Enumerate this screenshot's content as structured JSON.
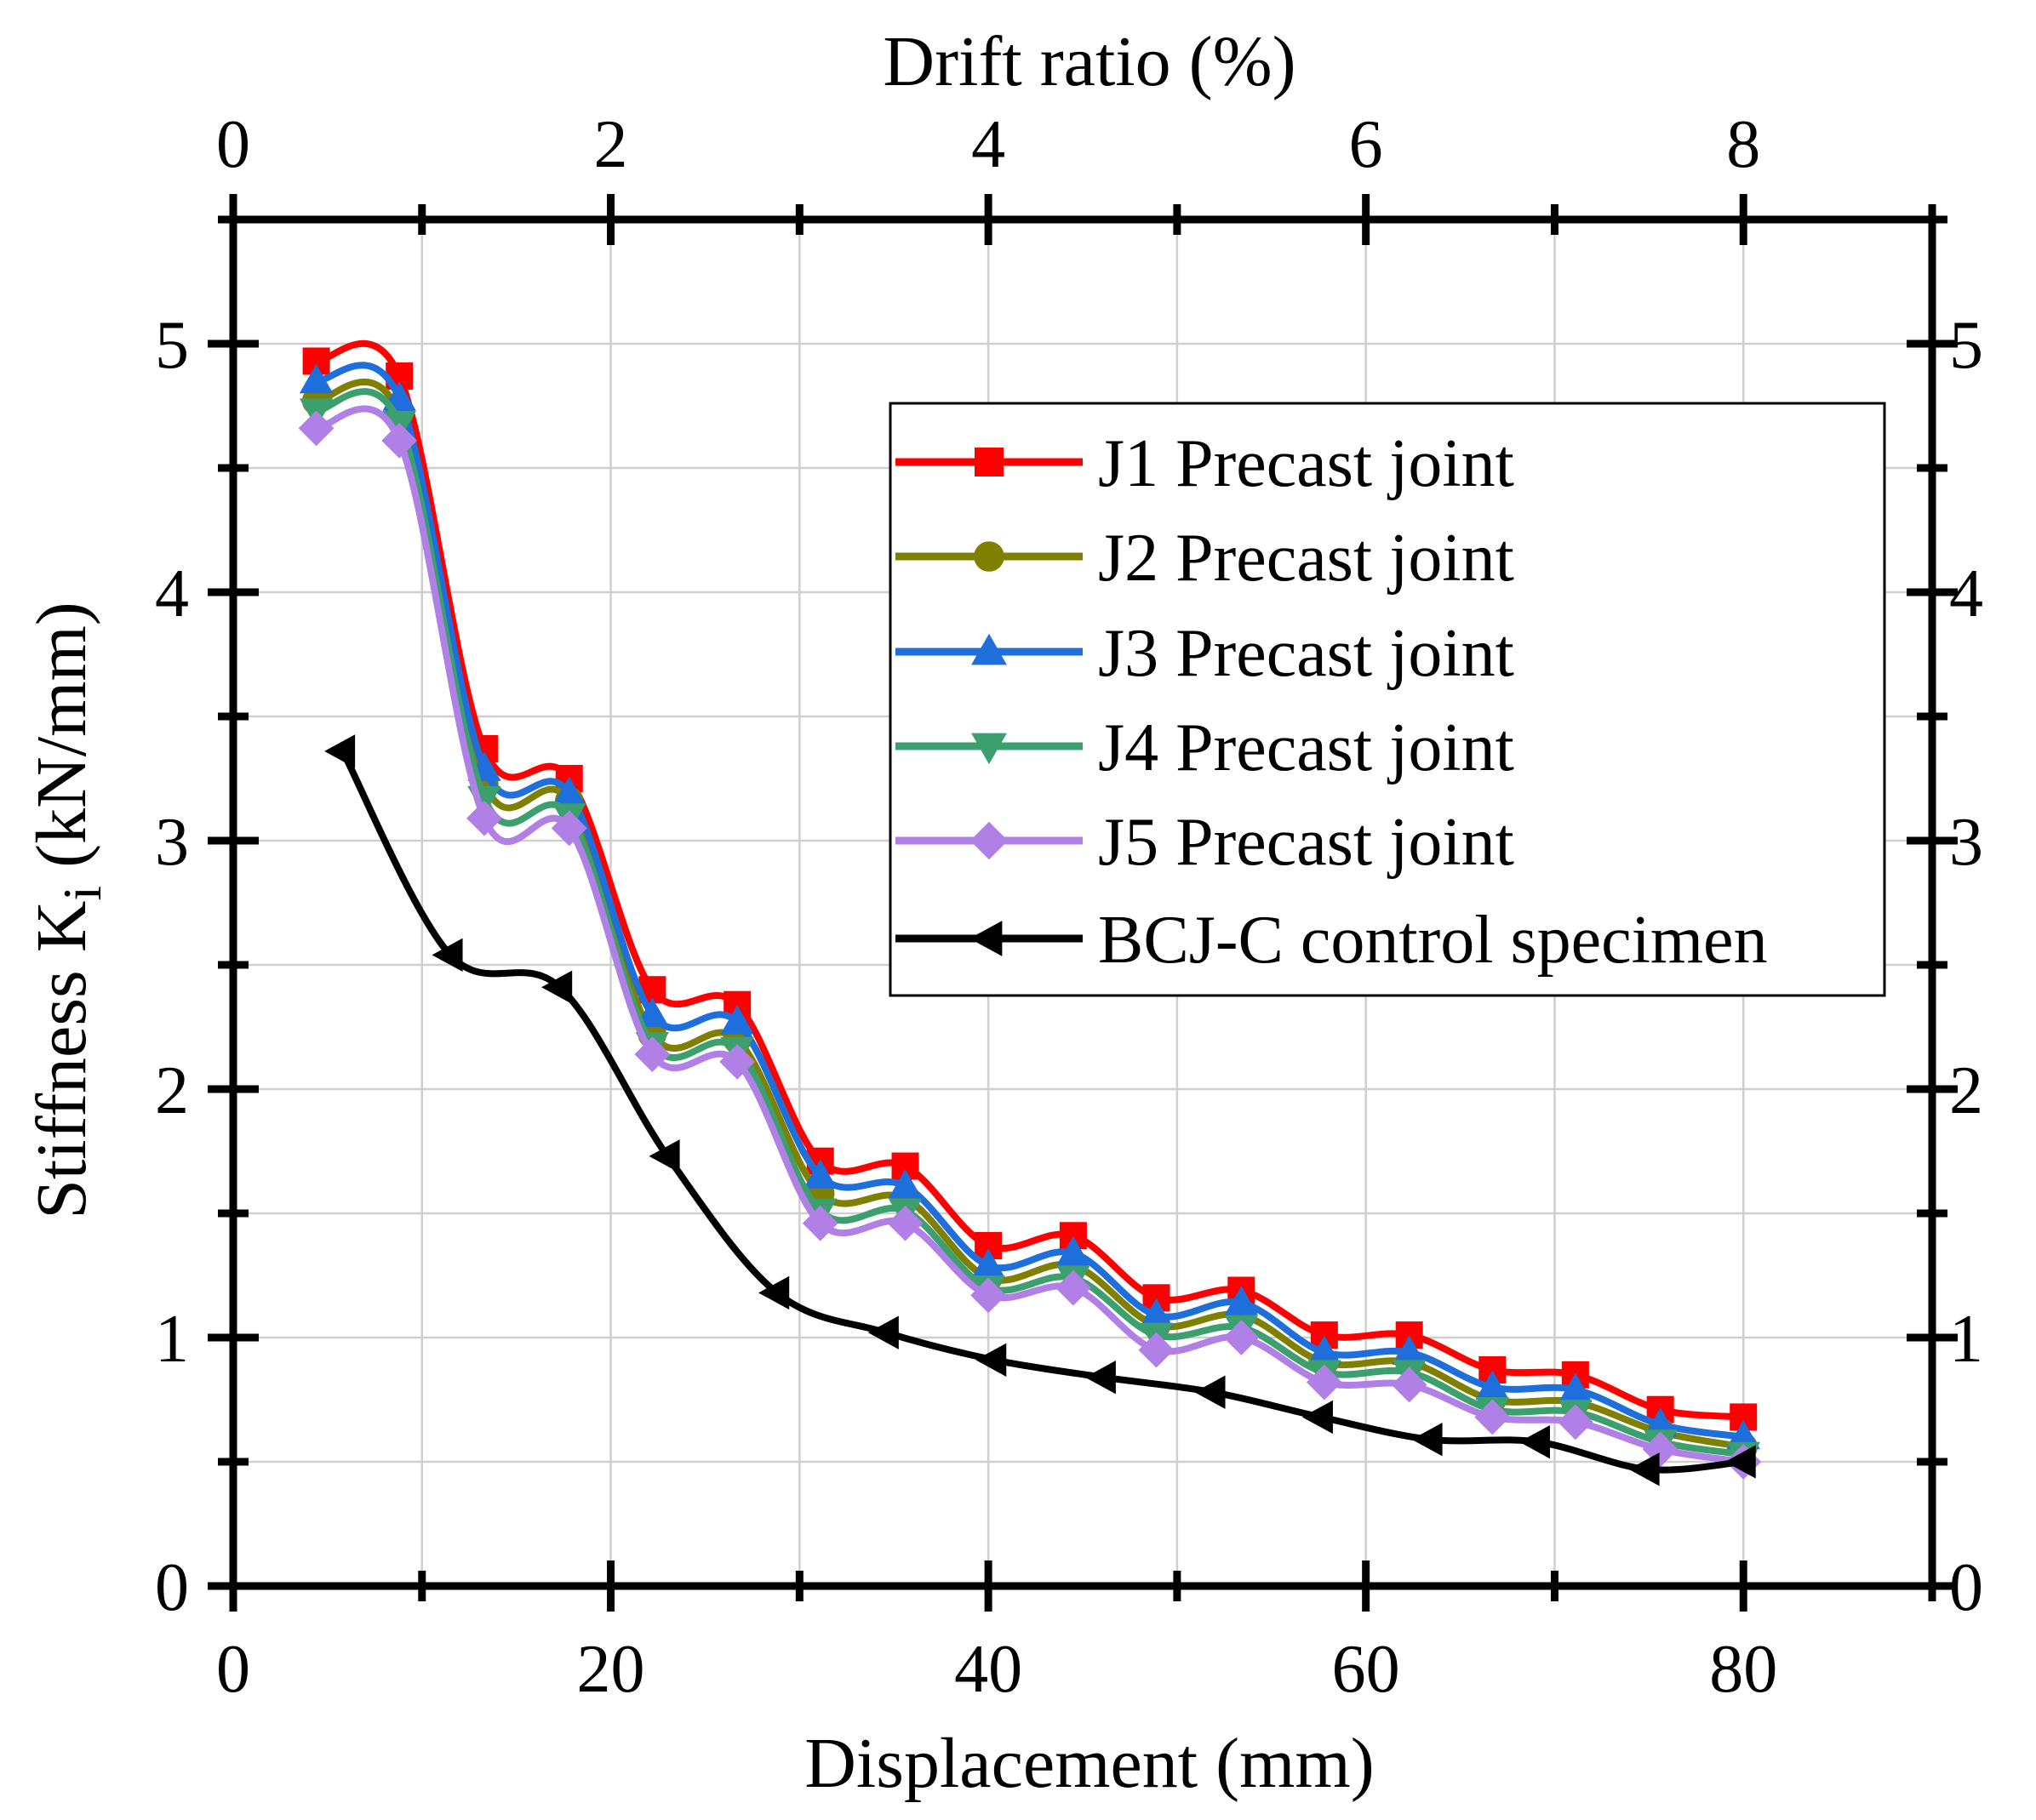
{
  "chart_data": {
    "type": "line",
    "title": "",
    "xlabel": "Displacement (mm)",
    "x2label": "Drift ratio (%)",
    "ylabel": "Stiffness K",
    "ylabel_sub": "i",
    "ylabel_unit": " (kN/mm)",
    "xlim": [
      0,
      90
    ],
    "ylim": [
      0,
      5.5
    ],
    "x2lim": [
      0,
      9
    ],
    "xticks": [
      0,
      20,
      40,
      60,
      80
    ],
    "x2ticks": [
      0,
      2,
      4,
      6,
      8
    ],
    "yticks": [
      0,
      1,
      2,
      3,
      4,
      5
    ],
    "grid": true,
    "legend_position": "top-right",
    "series": [
      {
        "name": "J1 Precast joint",
        "color": "#ff0000",
        "marker": "square",
        "x": [
          4.4,
          8.8,
          13.3,
          17.8,
          22.2,
          26.7,
          31.1,
          35.6,
          40.0,
          44.5,
          48.9,
          53.4,
          57.8,
          62.3,
          66.7,
          71.1,
          75.6,
          80.0
        ],
        "y": [
          4.93,
          4.87,
          3.37,
          3.25,
          2.4,
          2.34,
          1.71,
          1.69,
          1.37,
          1.41,
          1.16,
          1.19,
          1.01,
          1.01,
          0.87,
          0.85,
          0.71,
          0.68
        ]
      },
      {
        "name": "J2 Precast joint",
        "color": "#808000",
        "marker": "circle",
        "x": [
          4.4,
          8.8,
          13.3,
          17.8,
          22.2,
          26.7,
          31.1,
          35.6,
          40.0,
          44.5,
          48.9,
          53.4,
          57.8,
          62.3,
          66.7,
          71.1,
          75.6,
          80.0
        ],
        "y": [
          4.77,
          4.72,
          3.23,
          3.16,
          2.22,
          2.2,
          1.58,
          1.56,
          1.24,
          1.29,
          1.05,
          1.09,
          0.9,
          0.9,
          0.75,
          0.74,
          0.62,
          0.56
        ]
      },
      {
        "name": "J3 Precast joint",
        "color": "#1e6fdc",
        "marker": "triangle-up",
        "x": [
          4.4,
          8.8,
          13.3,
          17.8,
          22.2,
          26.7,
          31.1,
          35.6,
          40.0,
          44.5,
          48.9,
          53.4,
          57.8,
          62.3,
          66.7,
          71.1,
          75.6,
          80.0
        ],
        "y": [
          4.85,
          4.78,
          3.29,
          3.19,
          2.3,
          2.27,
          1.65,
          1.61,
          1.29,
          1.34,
          1.09,
          1.14,
          0.94,
          0.94,
          0.8,
          0.79,
          0.65,
          0.6
        ]
      },
      {
        "name": "J4 Precast joint",
        "color": "#3ca06e",
        "marker": "triangle-down",
        "x": [
          4.4,
          8.8,
          13.3,
          17.8,
          22.2,
          26.7,
          31.1,
          35.6,
          40.0,
          44.5,
          48.9,
          53.4,
          57.8,
          62.3,
          66.7,
          71.1,
          75.6,
          80.0
        ],
        "y": [
          4.73,
          4.68,
          3.17,
          3.1,
          2.18,
          2.16,
          1.51,
          1.51,
          1.2,
          1.24,
          1.01,
          1.04,
          0.86,
          0.86,
          0.71,
          0.7,
          0.58,
          0.53
        ]
      },
      {
        "name": "J5 Precast joint",
        "color": "#b080e6",
        "marker": "diamond",
        "x": [
          4.4,
          8.8,
          13.3,
          17.8,
          22.2,
          26.7,
          31.1,
          35.6,
          40.0,
          44.5,
          48.9,
          53.4,
          57.8,
          62.3,
          66.7,
          71.1,
          75.6,
          80.0
        ],
        "y": [
          4.66,
          4.61,
          3.09,
          3.05,
          2.14,
          2.11,
          1.46,
          1.46,
          1.17,
          1.2,
          0.95,
          1.0,
          0.82,
          0.81,
          0.68,
          0.66,
          0.55,
          0.5
        ]
      },
      {
        "name": "BCJ-C control specimen",
        "color": "#000000",
        "marker": "triangle-left",
        "x": [
          5.8,
          11.5,
          17.3,
          23.0,
          28.8,
          34.6,
          40.3,
          46.1,
          51.9,
          57.6,
          63.4,
          69.1,
          74.9,
          80.0
        ],
        "y": [
          3.36,
          2.54,
          2.41,
          1.73,
          1.18,
          1.02,
          0.91,
          0.84,
          0.78,
          0.68,
          0.59,
          0.58,
          0.47,
          0.5
        ]
      }
    ]
  }
}
